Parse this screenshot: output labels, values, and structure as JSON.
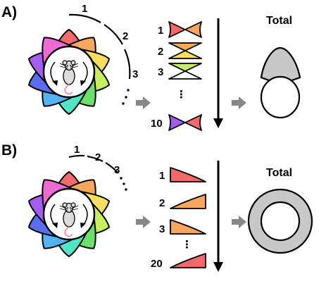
{
  "panels": [
    {
      "label": "A)",
      "arc_labels": [
        "1",
        "2",
        "3"
      ],
      "row_labels": [
        "1",
        "2",
        "3",
        "10"
      ],
      "total_label": "Total",
      "continuation": "⋮"
    },
    {
      "label": "B)",
      "arc_labels": [
        "1",
        "2",
        "3"
      ],
      "row_labels": [
        "1",
        "2",
        "3",
        "20"
      ],
      "total_label": "Total",
      "continuation": "⋮"
    }
  ],
  "colors": {
    "petals": [
      "#f46a6a",
      "#f7a85c",
      "#f8e05e",
      "#c7ee5e",
      "#6be06b",
      "#4fe6c6",
      "#52b4f3",
      "#5a6cf0",
      "#a45cf2",
      "#f06ad6"
    ],
    "arrow_gray": "#888888",
    "result_gray": "#c8c8c8",
    "stroke": "#000000"
  }
}
